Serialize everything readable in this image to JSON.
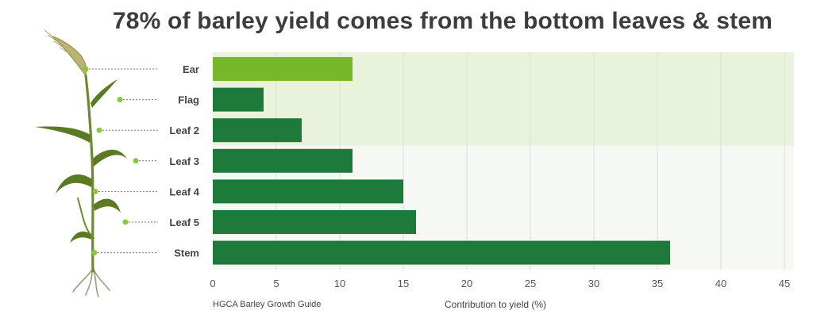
{
  "chart_data": {
    "type": "bar",
    "orientation": "horizontal",
    "title": "78% of barley yield comes from the bottom leaves & stem",
    "categories": [
      "Ear",
      "Flag",
      "Leaf 2",
      "Leaf 3",
      "Leaf 4",
      "Leaf 5",
      "Stem"
    ],
    "values": [
      11,
      4,
      7,
      11,
      15,
      16,
      36
    ],
    "xlabel": "Contribution to yield (%)",
    "xticks": [
      "0",
      "5",
      "10",
      "15",
      "20",
      "25",
      "30",
      "35",
      "40",
      "45"
    ],
    "xlim": [
      0,
      45
    ],
    "grid": true,
    "source": "HGCA Barley Growth Guide",
    "colors": {
      "ear_bar": "#76b82a",
      "bar": "#1e7a3a",
      "upper_band": "#e9f3dc",
      "lower_band": "#f6f8f3",
      "dot": "#8cc63f",
      "gridline": "#dcdcdc"
    }
  },
  "illustration": "barley-plant"
}
